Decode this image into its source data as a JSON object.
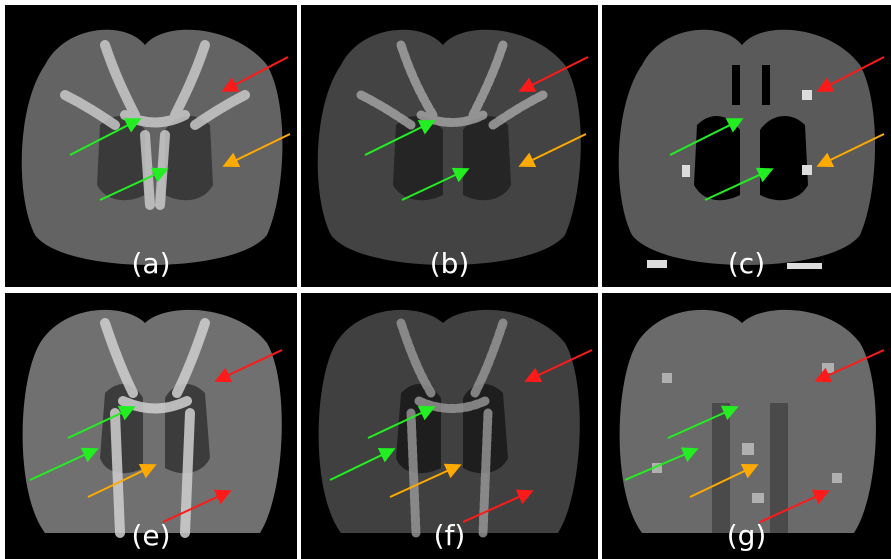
{
  "figure": {
    "colors": {
      "red_arrow": "#ff1a1a",
      "green_arrow": "#22ee22",
      "orange_arrow": "#ffaa00",
      "background": "#000000",
      "separator": "#ffffff"
    },
    "panels": [
      {
        "id": "a",
        "label": "(a)",
        "style": "smooth-gray",
        "arrows": [
          "red",
          "green",
          "green",
          "orange"
        ]
      },
      {
        "id": "b",
        "label": "(b)",
        "style": "speckled-gray",
        "arrows": [
          "red",
          "green",
          "green",
          "orange"
        ]
      },
      {
        "id": "c",
        "label": "(c)",
        "style": "segmented-gray",
        "arrows": [
          "red",
          "green",
          "green",
          "orange"
        ]
      },
      {
        "id": "e",
        "label": "(e)",
        "style": "smooth-gray",
        "arrows": [
          "red",
          "green",
          "green",
          "orange",
          "red"
        ]
      },
      {
        "id": "f",
        "label": "(f)",
        "style": "speckled-gray",
        "arrows": [
          "red",
          "green",
          "green",
          "orange",
          "red"
        ]
      },
      {
        "id": "g",
        "label": "(g)",
        "style": "segmented-gray",
        "arrows": [
          "red",
          "green",
          "green",
          "orange",
          "red"
        ]
      }
    ]
  }
}
